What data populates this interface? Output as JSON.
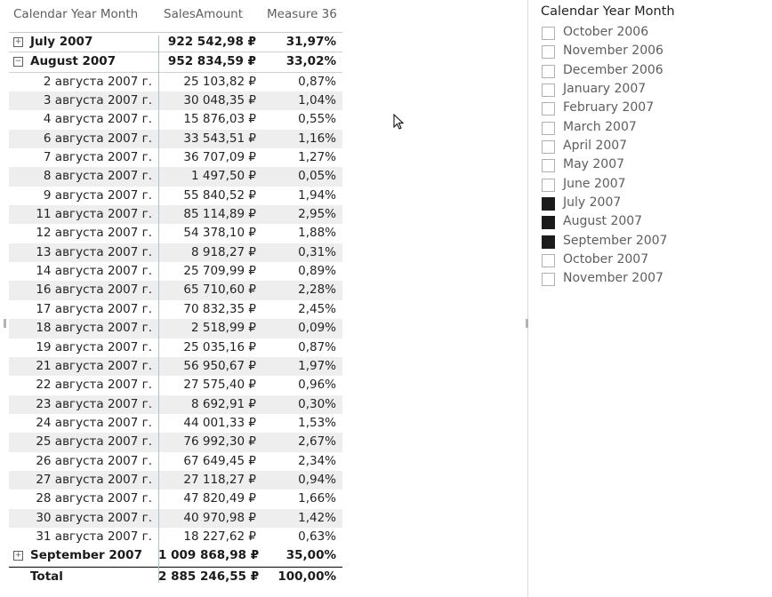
{
  "matrix": {
    "headers": [
      "Calendar Year Month",
      "SalesAmount",
      "Measure 36"
    ],
    "groups_top": [
      {
        "label": "July 2007",
        "sales": "922 542,98 ₽",
        "measure": "31,97%",
        "toggle": "+"
      },
      {
        "label": "August 2007",
        "sales": "952 834,59 ₽",
        "measure": "33,02%",
        "toggle": "−"
      }
    ],
    "rows": [
      {
        "label": "2 августа 2007 г.",
        "sales": "25 103,82 ₽",
        "measure": "0,87%"
      },
      {
        "label": "3 августа 2007 г.",
        "sales": "30 048,35 ₽",
        "measure": "1,04%"
      },
      {
        "label": "4 августа 2007 г.",
        "sales": "15 876,03 ₽",
        "measure": "0,55%"
      },
      {
        "label": "6 августа 2007 г.",
        "sales": "33 543,51 ₽",
        "measure": "1,16%"
      },
      {
        "label": "7 августа 2007 г.",
        "sales": "36 707,09 ₽",
        "measure": "1,27%"
      },
      {
        "label": "8 августа 2007 г.",
        "sales": "1 497,50 ₽",
        "measure": "0,05%"
      },
      {
        "label": "9 августа 2007 г.",
        "sales": "55 840,52 ₽",
        "measure": "1,94%"
      },
      {
        "label": "11 августа 2007 г.",
        "sales": "85 114,89 ₽",
        "measure": "2,95%"
      },
      {
        "label": "12 августа 2007 г.",
        "sales": "54 378,10 ₽",
        "measure": "1,88%"
      },
      {
        "label": "13 августа 2007 г.",
        "sales": "8 918,27 ₽",
        "measure": "0,31%"
      },
      {
        "label": "14 августа 2007 г.",
        "sales": "25 709,99 ₽",
        "measure": "0,89%"
      },
      {
        "label": "16 августа 2007 г.",
        "sales": "65 710,60 ₽",
        "measure": "2,28%"
      },
      {
        "label": "17 августа 2007 г.",
        "sales": "70 832,35 ₽",
        "measure": "2,45%"
      },
      {
        "label": "18 августа 2007 г.",
        "sales": "2 518,99 ₽",
        "measure": "0,09%"
      },
      {
        "label": "19 августа 2007 г.",
        "sales": "25 035,16 ₽",
        "measure": "0,87%"
      },
      {
        "label": "21 августа 2007 г.",
        "sales": "56 950,67 ₽",
        "measure": "1,97%"
      },
      {
        "label": "22 августа 2007 г.",
        "sales": "27 575,40 ₽",
        "measure": "0,96%"
      },
      {
        "label": "23 августа 2007 г.",
        "sales": "8 692,91 ₽",
        "measure": "0,30%"
      },
      {
        "label": "24 августа 2007 г.",
        "sales": "44 001,33 ₽",
        "measure": "1,53%"
      },
      {
        "label": "25 августа 2007 г.",
        "sales": "76 992,30 ₽",
        "measure": "2,67%"
      },
      {
        "label": "26 августа 2007 г.",
        "sales": "67 649,45 ₽",
        "measure": "2,34%"
      },
      {
        "label": "27 августа 2007 г.",
        "sales": "27 118,27 ₽",
        "measure": "0,94%"
      },
      {
        "label": "28 августа 2007 г.",
        "sales": "47 820,49 ₽",
        "measure": "1,66%"
      },
      {
        "label": "30 августа 2007 г.",
        "sales": "40 970,98 ₽",
        "measure": "1,42%"
      },
      {
        "label": "31 августа 2007 г.",
        "sales": "18 227,62 ₽",
        "measure": "0,63%"
      }
    ],
    "group_bottom": {
      "label": "September 2007",
      "sales": "1 009 868,98 ₽",
      "measure": "35,00%",
      "toggle": "+"
    },
    "total": {
      "label": "Total",
      "sales": "2 885 246,55 ₽",
      "measure": "100,00%"
    }
  },
  "slicer": {
    "title": "Calendar Year Month",
    "items": [
      {
        "label": "October 2006",
        "checked": false
      },
      {
        "label": "November 2006",
        "checked": false
      },
      {
        "label": "December 2006",
        "checked": false
      },
      {
        "label": "January 2007",
        "checked": false
      },
      {
        "label": "February 2007",
        "checked": false
      },
      {
        "label": "March 2007",
        "checked": false
      },
      {
        "label": "April 2007",
        "checked": false
      },
      {
        "label": "May 2007",
        "checked": false
      },
      {
        "label": "June 2007",
        "checked": false
      },
      {
        "label": "July 2007",
        "checked": true
      },
      {
        "label": "August 2007",
        "checked": true
      },
      {
        "label": "September 2007",
        "checked": true
      },
      {
        "label": "October 2007",
        "checked": false
      },
      {
        "label": "November 2007",
        "checked": false
      }
    ]
  },
  "colors": {
    "checked": "#1b1b1b",
    "divider": "#9fc5d8",
    "band": "#eeeeee"
  }
}
